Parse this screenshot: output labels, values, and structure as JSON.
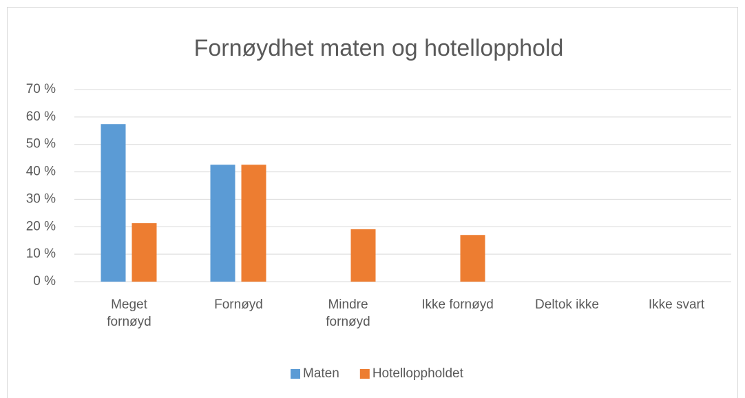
{
  "chart_data": {
    "type": "bar",
    "title": "Fornøydhet maten og hotellopphold",
    "categories": [
      "Meget fornøyd",
      "Fornøyd",
      "Mindre fornøyd",
      "Ikke fornøyd",
      "Deltok ikke",
      "Ikke svart"
    ],
    "series": [
      {
        "name": "Maten",
        "color": "#5b9bd5",
        "values": [
          57.4,
          42.6,
          0,
          0,
          0,
          0
        ]
      },
      {
        "name": "Hotelloppholdet",
        "color": "#ed7d31",
        "values": [
          21.3,
          42.6,
          19.1,
          17.0,
          0,
          0
        ]
      }
    ],
    "ylim": [
      0,
      70
    ],
    "yticks": [
      {
        "value": 0,
        "label": "0 %"
      },
      {
        "value": 10,
        "label": "10 %"
      },
      {
        "value": 20,
        "label": "20 %"
      },
      {
        "value": 30,
        "label": "30 %"
      },
      {
        "value": 40,
        "label": "40 %"
      },
      {
        "value": 50,
        "label": "50 %"
      },
      {
        "value": 60,
        "label": "60 %"
      },
      {
        "value": 70,
        "label": "70 %"
      }
    ],
    "grid": true,
    "legend": "bottom"
  }
}
